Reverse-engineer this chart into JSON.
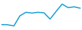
{
  "x": [
    0,
    1,
    2,
    3,
    4,
    5,
    6,
    7,
    8,
    9,
    10,
    11,
    12,
    13
  ],
  "y": [
    3.0,
    2.9,
    2.5,
    6.2,
    7.5,
    7.2,
    7.5,
    7.3,
    5.0,
    7.8,
    10.5,
    9.2,
    9.5,
    9.0
  ],
  "line_color": "#1a9fd4",
  "line_width": 1.2,
  "background_color": "#ffffff",
  "ylim": [
    1.0,
    12.0
  ]
}
